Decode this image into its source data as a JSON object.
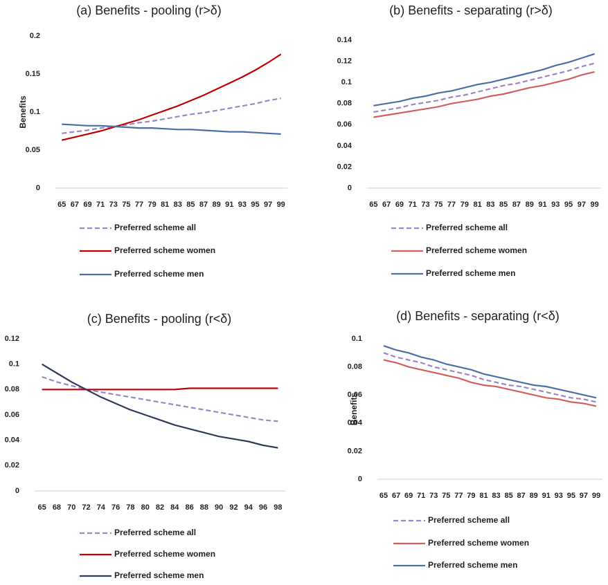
{
  "chart_data": [
    {
      "type": "line",
      "title": "(a) Benefits - pooling (r>δ)",
      "ylabel": "Benefits",
      "categories": [
        "65",
        "67",
        "69",
        "71",
        "73",
        "75",
        "77",
        "79",
        "81",
        "83",
        "85",
        "87",
        "89",
        "91",
        "93",
        "95",
        "97",
        "99"
      ],
      "ylim": [
        0,
        0.2
      ],
      "yticks": [
        0,
        0.05,
        0.1,
        0.15,
        0.2
      ],
      "series": [
        {
          "name": "Preferred scheme all",
          "color": "#9a85c6",
          "dash": "dashed",
          "values": [
            0.072,
            0.074,
            0.076,
            0.079,
            0.081,
            0.083,
            0.086,
            0.088,
            0.091,
            0.094,
            0.097,
            0.099,
            0.102,
            0.105,
            0.108,
            0.111,
            0.115,
            0.118
          ]
        },
        {
          "name": "Preferred scheme women",
          "color": "#c00000",
          "dash": "solid",
          "values": [
            0.063,
            0.067,
            0.071,
            0.075,
            0.08,
            0.085,
            0.09,
            0.096,
            0.102,
            0.108,
            0.115,
            0.122,
            0.13,
            0.138,
            0.146,
            0.155,
            0.165,
            0.176
          ]
        },
        {
          "name": "Preferred scheme men",
          "color": "#4a6fa5",
          "dash": "solid",
          "values": [
            0.084,
            0.083,
            0.082,
            0.082,
            0.081,
            0.08,
            0.079,
            0.079,
            0.078,
            0.077,
            0.077,
            0.076,
            0.075,
            0.074,
            0.074,
            0.073,
            0.072,
            0.071
          ]
        }
      ]
    },
    {
      "type": "line",
      "title": "(b) Benefits - separating (r>δ)",
      "categories": [
        "65",
        "67",
        "69",
        "71",
        "73",
        "75",
        "77",
        "79",
        "81",
        "83",
        "85",
        "87",
        "89",
        "91",
        "93",
        "95",
        "97",
        "99"
      ],
      "ylim": [
        0,
        0.14
      ],
      "yticks": [
        0,
        0.02,
        0.04,
        0.06,
        0.08,
        0.1,
        0.12,
        0.14
      ],
      "series": [
        {
          "name": "Preferred scheme all",
          "color": "#9a85c6",
          "dash": "dashed",
          "values": [
            0.072,
            0.074,
            0.076,
            0.079,
            0.081,
            0.083,
            0.086,
            0.088,
            0.091,
            0.094,
            0.097,
            0.099,
            0.102,
            0.105,
            0.108,
            0.111,
            0.115,
            0.118
          ]
        },
        {
          "name": "Preferred scheme women",
          "color": "#d0605e",
          "dash": "solid",
          "values": [
            0.067,
            0.069,
            0.071,
            0.073,
            0.075,
            0.077,
            0.08,
            0.082,
            0.084,
            0.087,
            0.089,
            0.092,
            0.095,
            0.097,
            0.1,
            0.103,
            0.107,
            0.11
          ]
        },
        {
          "name": "Preferred scheme men",
          "color": "#4a6fa5",
          "dash": "solid",
          "values": [
            0.078,
            0.08,
            0.082,
            0.085,
            0.087,
            0.09,
            0.092,
            0.095,
            0.098,
            0.1,
            0.103,
            0.106,
            0.109,
            0.112,
            0.116,
            0.119,
            0.123,
            0.127
          ]
        }
      ]
    },
    {
      "type": "line",
      "title": "(c) Benefits - pooling (r<δ)",
      "categories": [
        "65",
        "68",
        "70",
        "72",
        "74",
        "76",
        "78",
        "80",
        "82",
        "84",
        "86",
        "88",
        "90",
        "92",
        "94",
        "96",
        "98"
      ],
      "ylim": [
        0,
        0.12
      ],
      "yticks": [
        0,
        0.02,
        0.04,
        0.06,
        0.08,
        0.1,
        0.12
      ],
      "series": [
        {
          "name": "Preferred scheme all",
          "color": "#9a85c6",
          "dash": "dashed",
          "values": [
            0.09,
            0.086,
            0.083,
            0.08,
            0.078,
            0.076,
            0.074,
            0.072,
            0.07,
            0.068,
            0.066,
            0.064,
            0.062,
            0.06,
            0.058,
            0.056,
            0.055
          ]
        },
        {
          "name": "Preferred scheme women",
          "color": "#c00000",
          "dash": "solid",
          "values": [
            0.08,
            0.08,
            0.08,
            0.08,
            0.08,
            0.08,
            0.08,
            0.08,
            0.08,
            0.08,
            0.081,
            0.081,
            0.081,
            0.081,
            0.081,
            0.081,
            0.081
          ]
        },
        {
          "name": "Preferred scheme men",
          "color": "#2e3a59",
          "dash": "solid",
          "values": [
            0.1,
            0.093,
            0.086,
            0.08,
            0.074,
            0.069,
            0.064,
            0.06,
            0.056,
            0.052,
            0.049,
            0.046,
            0.043,
            0.041,
            0.039,
            0.036,
            0.034
          ]
        }
      ]
    },
    {
      "type": "line",
      "title": "(d) Benefits - separating (r<δ)",
      "ylabel": "Benefits",
      "categories": [
        "65",
        "67",
        "69",
        "71",
        "73",
        "75",
        "77",
        "79",
        "81",
        "83",
        "85",
        "87",
        "89",
        "91",
        "93",
        "95",
        "97",
        "99"
      ],
      "ylim": [
        0,
        0.1
      ],
      "yticks": [
        0,
        0.02,
        0.04,
        0.06,
        0.08,
        0.1
      ],
      "series": [
        {
          "name": "Preferred scheme all",
          "color": "#9a85c6",
          "dash": "dashed",
          "values": [
            0.09,
            0.087,
            0.085,
            0.083,
            0.08,
            0.078,
            0.076,
            0.074,
            0.071,
            0.069,
            0.067,
            0.066,
            0.064,
            0.062,
            0.06,
            0.058,
            0.057,
            0.055
          ]
        },
        {
          "name": "Preferred scheme women",
          "color": "#d0605e",
          "dash": "solid",
          "values": [
            0.085,
            0.083,
            0.08,
            0.078,
            0.076,
            0.074,
            0.072,
            0.069,
            0.067,
            0.066,
            0.064,
            0.062,
            0.06,
            0.058,
            0.057,
            0.055,
            0.054,
            0.052
          ]
        },
        {
          "name": "Preferred scheme men",
          "color": "#4a6fa5",
          "dash": "solid",
          "values": [
            0.095,
            0.092,
            0.09,
            0.087,
            0.085,
            0.082,
            0.08,
            0.078,
            0.075,
            0.073,
            0.071,
            0.069,
            0.067,
            0.066,
            0.064,
            0.062,
            0.06,
            0.058
          ]
        }
      ]
    }
  ]
}
